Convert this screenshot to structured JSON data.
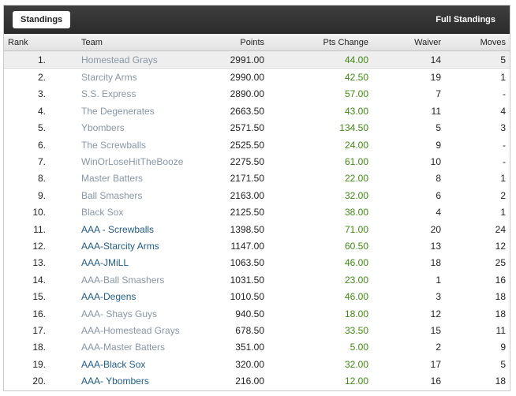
{
  "header": {
    "tab_label": "Standings",
    "full_link": "Full Standings"
  },
  "columns": {
    "rank": "Rank",
    "team": "Team",
    "points": "Points",
    "pts_change": "Pts Change",
    "waiver": "Waiver",
    "moves": "Moves"
  },
  "colors": {
    "team_grey": "#8797a6",
    "team_blue": "#1f5d8c",
    "pts_change_green": "#3e8a10",
    "header_bar": "#333333"
  },
  "rows": [
    {
      "rank": "1.",
      "team": "Homestead Grays",
      "team_color": "grey",
      "points": "2991.00",
      "pts_change": "44.00",
      "waiver": "14",
      "moves": "5"
    },
    {
      "rank": "2.",
      "team": "Starcity Arms",
      "team_color": "grey",
      "points": "2990.00",
      "pts_change": "42.50",
      "waiver": "19",
      "moves": "1"
    },
    {
      "rank": "3.",
      "team": "S.S. Express",
      "team_color": "grey",
      "points": "2890.00",
      "pts_change": "57.00",
      "waiver": "7",
      "moves": "-"
    },
    {
      "rank": "4.",
      "team": "The Degenerates",
      "team_color": "grey",
      "points": "2663.50",
      "pts_change": "43.00",
      "waiver": "11",
      "moves": "4"
    },
    {
      "rank": "5.",
      "team": "Ybombers",
      "team_color": "grey",
      "points": "2571.50",
      "pts_change": "134.50",
      "waiver": "5",
      "moves": "3"
    },
    {
      "rank": "6.",
      "team": "The Screwballs",
      "team_color": "grey",
      "points": "2525.50",
      "pts_change": "24.00",
      "waiver": "9",
      "moves": "-"
    },
    {
      "rank": "7.",
      "team": "WinOrLoseHitTheBooze",
      "team_color": "grey",
      "points": "2275.50",
      "pts_change": "61.00",
      "waiver": "10",
      "moves": "-"
    },
    {
      "rank": "8.",
      "team": "Master Batters",
      "team_color": "grey",
      "points": "2171.50",
      "pts_change": "22.00",
      "waiver": "8",
      "moves": "1"
    },
    {
      "rank": "9.",
      "team": "Ball Smashers",
      "team_color": "grey",
      "points": "2163.00",
      "pts_change": "32.00",
      "waiver": "6",
      "moves": "2"
    },
    {
      "rank": "10.",
      "team": "Black Sox",
      "team_color": "grey",
      "points": "2125.50",
      "pts_change": "38.00",
      "waiver": "4",
      "moves": "1"
    },
    {
      "rank": "11.",
      "team": "AAA - Screwballs",
      "team_color": "blue",
      "points": "1398.50",
      "pts_change": "71.00",
      "waiver": "20",
      "moves": "24"
    },
    {
      "rank": "12.",
      "team": "AAA-Starcity Arms",
      "team_color": "blue",
      "points": "1147.00",
      "pts_change": "60.50",
      "waiver": "13",
      "moves": "12"
    },
    {
      "rank": "13.",
      "team": "AAA-JMiLL",
      "team_color": "blue",
      "points": "1063.50",
      "pts_change": "46.00",
      "waiver": "18",
      "moves": "25"
    },
    {
      "rank": "14.",
      "team": "AAA-Ball Smashers",
      "team_color": "grey",
      "points": "1031.50",
      "pts_change": "23.00",
      "waiver": "1",
      "moves": "16"
    },
    {
      "rank": "15.",
      "team": "AAA-Degens",
      "team_color": "blue",
      "points": "1010.50",
      "pts_change": "46.00",
      "waiver": "3",
      "moves": "18"
    },
    {
      "rank": "16.",
      "team": "AAA- Shays Guys",
      "team_color": "grey",
      "points": "940.50",
      "pts_change": "18.00",
      "waiver": "12",
      "moves": "18"
    },
    {
      "rank": "17.",
      "team": "AAA-Homestead Grays",
      "team_color": "grey",
      "points": "678.50",
      "pts_change": "33.50",
      "waiver": "15",
      "moves": "11"
    },
    {
      "rank": "18.",
      "team": "AAA-Master Batters",
      "team_color": "grey",
      "points": "351.00",
      "pts_change": "5.00",
      "waiver": "2",
      "moves": "9"
    },
    {
      "rank": "19.",
      "team": "AAA-Black Sox",
      "team_color": "blue",
      "points": "320.00",
      "pts_change": "32.00",
      "waiver": "17",
      "moves": "5"
    },
    {
      "rank": "20.",
      "team": "AAA- Ybombers",
      "team_color": "blue",
      "points": "216.00",
      "pts_change": "12.00",
      "waiver": "16",
      "moves": "18"
    }
  ]
}
